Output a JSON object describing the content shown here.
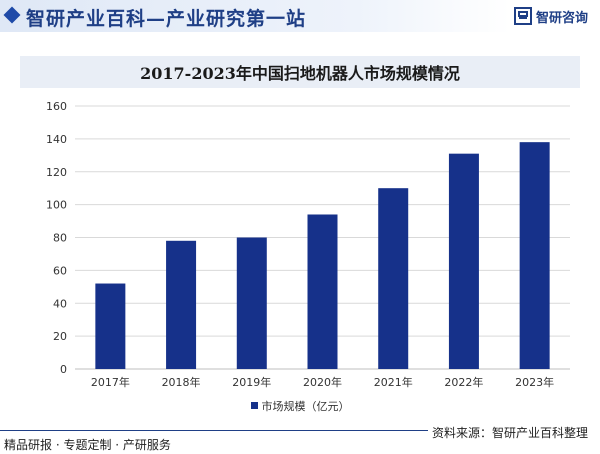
{
  "header": {
    "site_title": "智研产业百科—产业研究第一站",
    "brand_name": "智研咨询"
  },
  "colors": {
    "bar": "#16318a",
    "brand": "#1f3f86",
    "title_box": "#e9eef6"
  },
  "chart_data": {
    "type": "bar",
    "title": "2017-2023年中国扫地机器人市场规模情况",
    "categories": [
      "2017年",
      "2018年",
      "2019年",
      "2020年",
      "2021年",
      "2022年",
      "2023年"
    ],
    "series": [
      {
        "name": "市场规模（亿元）",
        "values": [
          52,
          78,
          80,
          94,
          110,
          131,
          138
        ]
      }
    ],
    "ylim": [
      0,
      160
    ],
    "yticks": [
      0,
      20,
      40,
      60,
      80,
      100,
      120,
      140,
      160
    ],
    "grid": true,
    "legend": "bottom"
  },
  "source": "资料来源：智研产业百科整理",
  "footer": "精品研报 · 专题定制 · 产研服务"
}
